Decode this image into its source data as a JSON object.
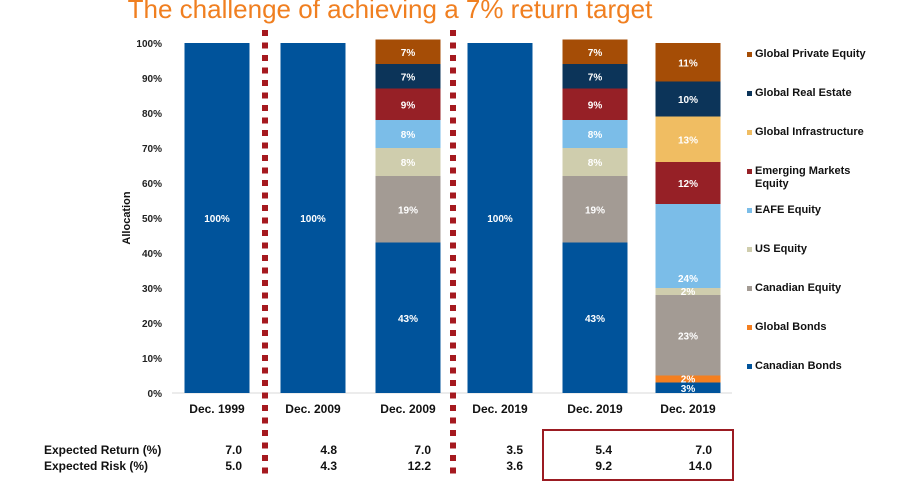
{
  "chart_data": {
    "type": "bar",
    "stacked": true,
    "title": "The challenge of achieving a 7% return target",
    "xlabel": "",
    "ylabel": "Allocation",
    "ylim": [
      0,
      100
    ],
    "yticks": [
      "0%",
      "10%",
      "20%",
      "30%",
      "40%",
      "50%",
      "60%",
      "70%",
      "80%",
      "90%",
      "100%"
    ],
    "categories": [
      "Dec. 1999",
      "Dec. 2009",
      "Dec. 2009",
      "Dec. 2019",
      "Dec. 2019",
      "Dec. 2019"
    ],
    "series": [
      {
        "name": "Canadian Bonds",
        "color": "#00539b",
        "values": [
          100,
          100,
          43,
          100,
          43,
          3
        ]
      },
      {
        "name": "Global Bonds",
        "color": "#f47f20",
        "values": [
          0,
          0,
          0,
          0,
          0,
          2
        ]
      },
      {
        "name": "Canadian Equity",
        "color": "#a39b94",
        "values": [
          0,
          0,
          19,
          0,
          19,
          23
        ]
      },
      {
        "name": "US Equity",
        "color": "#cfcdad",
        "values": [
          0,
          0,
          8,
          0,
          8,
          2
        ]
      },
      {
        "name": "EAFE Equity",
        "color": "#7bbde8",
        "values": [
          0,
          0,
          8,
          0,
          8,
          24
        ]
      },
      {
        "name": "Emerging Markets Equity",
        "color": "#962026",
        "values": [
          0,
          0,
          9,
          0,
          9,
          12
        ]
      },
      {
        "name": "Global Infrastructure",
        "color": "#f0bd62",
        "values": [
          0,
          0,
          0,
          0,
          0,
          13
        ]
      },
      {
        "name": "Global Real Estate",
        "color": "#0c3459",
        "values": [
          0,
          0,
          7,
          0,
          7,
          10
        ]
      },
      {
        "name": "Global Private Equity",
        "color": "#a54d06",
        "values": [
          0,
          0,
          7,
          0,
          7,
          11
        ]
      }
    ],
    "legend_position": "right",
    "legend_order": [
      "Global Private Equity",
      "Global Real Estate",
      "Global Infrastructure",
      "Emerging Markets Equity",
      "EAFE Equity",
      "US Equity",
      "Canadian Equity",
      "Global Bonds",
      "Canadian Bonds"
    ],
    "separators_after_category_index": [
      0,
      2
    ],
    "table": {
      "rows": [
        {
          "label": "Expected Return (%)",
          "values": [
            "7.0",
            "4.8",
            "7.0",
            "3.5",
            "5.4",
            "7.0"
          ]
        },
        {
          "label": "Expected Risk (%)",
          "values": [
            "5.0",
            "4.3",
            "12.2",
            "3.6",
            "9.2",
            "14.0"
          ]
        }
      ],
      "highlighted_columns": [
        4,
        5
      ],
      "highlight_color": "#9b1b22"
    }
  }
}
